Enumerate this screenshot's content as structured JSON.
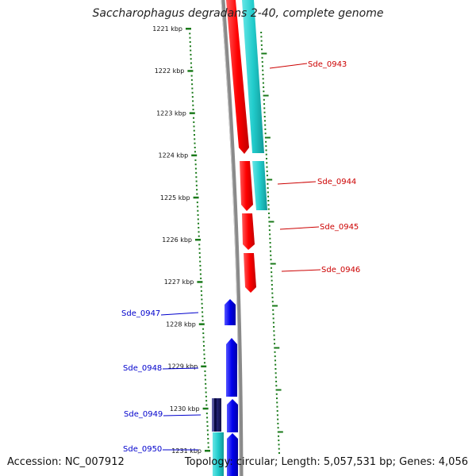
{
  "title": "Saccharophagus degradans 2-40, complete genome",
  "footer": {
    "accession": "Accession: NC_007912",
    "summary": "Topology: circular; Length: 5,057,531 bp; Genes: 4,056"
  },
  "colors": {
    "forward_gene": "#ff0000",
    "reverse_gene": "#0000ee",
    "cds_band": "#22cccc",
    "backbone": "#888888",
    "ruler": "#1a7a1a",
    "forward_label": "#cc0000",
    "reverse_label": "#0000cc"
  },
  "ruler_ticks": [
    "1221 kbp",
    "1222 kbp",
    "1223 kbp",
    "1224 kbp",
    "1225 kbp",
    "1226 kbp",
    "1227 kbp",
    "1228 kbp",
    "1229 kbp",
    "1230 kbp",
    "1231 kbp"
  ],
  "forward_genes": [
    "Sde_0943",
    "Sde_0944",
    "Sde_0945",
    "Sde_0946"
  ],
  "reverse_genes": [
    "Sde_0947",
    "Sde_0948",
    "Sde_0949",
    "Sde_0950"
  ]
}
